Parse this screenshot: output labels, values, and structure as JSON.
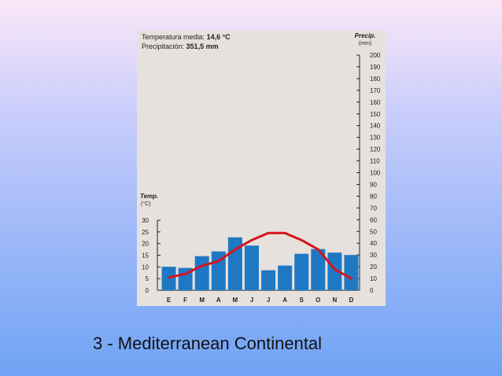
{
  "slide": {
    "caption": "3 - Mediterranean Continental",
    "background_top": "#fbe7f7",
    "background_bottom": "#6fa3f4"
  },
  "panel": {
    "temp_label": "Temperatura media:",
    "temp_value": "14,6 °C",
    "precip_label": "Precipitación:",
    "precip_value": "351,5 mm",
    "precip_axis_title": "Precip.",
    "precip_axis_unit": "(mm)",
    "temp_axis_title": "Temp.",
    "temp_axis_unit": "(°C)",
    "background": "#e6e1dc"
  },
  "chart_data": {
    "type": "bar",
    "categories": [
      "E",
      "F",
      "M",
      "A",
      "M",
      "J",
      "J",
      "A",
      "S",
      "O",
      "N",
      "D"
    ],
    "precipitation_mm": [
      20,
      19,
      29,
      33,
      45,
      38,
      17,
      21,
      31,
      35,
      32,
      30
    ],
    "temperature_c": [
      5.5,
      7,
      10.5,
      12.5,
      17.5,
      21.5,
      24.5,
      24.5,
      21.5,
      17.5,
      9,
      5
    ],
    "left_axis": {
      "label": "Temp. (°C)",
      "ylim": [
        0,
        30
      ],
      "ticks": [
        "0",
        "5",
        "10",
        "15",
        "20",
        "25",
        "30"
      ]
    },
    "right_axis": {
      "label": "Precip. (mm)",
      "ylim": [
        0,
        200
      ],
      "ticks": [
        "0",
        "10",
        "20",
        "30",
        "40",
        "50",
        "60",
        "70",
        "80",
        "90",
        "100",
        "110",
        "120",
        "130",
        "140",
        "150",
        "160",
        "170",
        "180",
        "190",
        "200"
      ]
    },
    "bar_color": "#1f78c4",
    "line_color": "#d7141b",
    "grid": false
  }
}
